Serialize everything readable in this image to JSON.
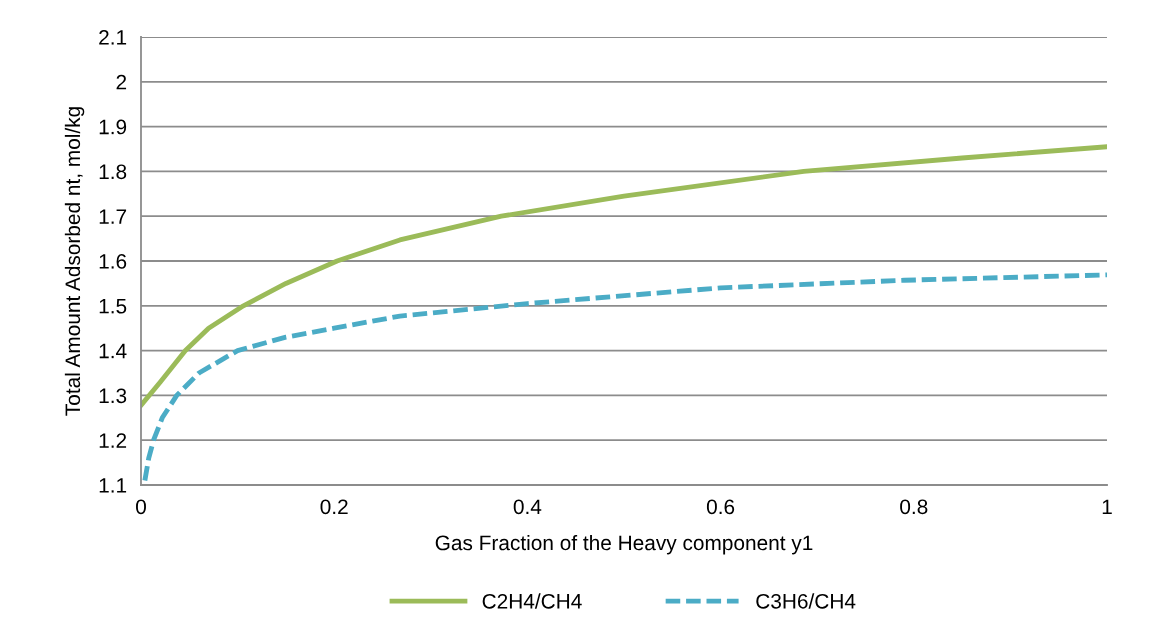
{
  "chart_data": {
    "type": "line",
    "xlabel": "Gas Fraction of the Heavy component y1",
    "ylabel": "Total Amount Adsorbed nt, mol/kg",
    "xlim": [
      0,
      1
    ],
    "xticks": [
      0,
      0.2,
      0.4,
      0.6,
      0.8,
      1
    ],
    "ylim": [
      1.1,
      2.1
    ],
    "yticks": [
      1.1,
      1.2,
      1.3,
      1.4,
      1.5,
      1.6,
      1.7,
      1.8,
      1.9,
      2,
      2.1
    ],
    "grid": "y",
    "legend": "bottom",
    "series": [
      {
        "name": "C2H4/CH4",
        "color": "#9bbb59",
        "line_style": "solid",
        "x": [
          0,
          0.02,
          0.046,
          0.07,
          0.106,
          0.15,
          0.203,
          0.268,
          0.373,
          0.5,
          0.686,
          0.85,
          1
        ],
        "values": [
          1.278,
          1.33,
          1.4,
          1.45,
          1.5,
          1.55,
          1.6,
          1.647,
          1.7,
          1.745,
          1.8,
          1.83,
          1.855
        ]
      },
      {
        "name": "C3H6/CH4",
        "color": "#4bacc6",
        "line_style": "dashed",
        "x": [
          0.004,
          0.008,
          0.013,
          0.022,
          0.037,
          0.06,
          0.1,
          0.15,
          0.2,
          0.268,
          0.4,
          0.6,
          0.79,
          1
        ],
        "values": [
          1.11,
          1.16,
          1.2,
          1.25,
          1.3,
          1.35,
          1.4,
          1.43,
          1.45,
          1.477,
          1.505,
          1.54,
          1.557,
          1.569
        ]
      }
    ]
  }
}
